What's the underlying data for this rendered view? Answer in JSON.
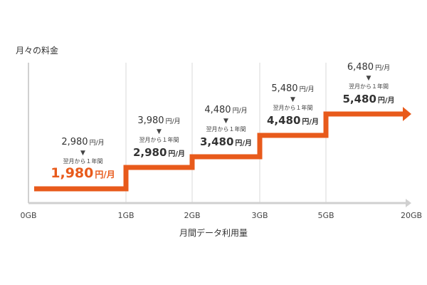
{
  "chart_data": {
    "type": "line",
    "ylabel": "月々の料金",
    "xlabel": "月間データ利用量",
    "x_categories": [
      "0GB",
      "1GB",
      "2GB",
      "3GB",
      "5GB",
      "20GB"
    ],
    "series": [
      {
        "values": [
          1980,
          2980,
          3480,
          4480,
          5480
        ]
      }
    ],
    "annotations": [
      {
        "regular": "2,980",
        "arrow": "▼",
        "note": "翌月から１年間",
        "discount": "1,980",
        "unit": "円/月"
      },
      {
        "regular": "3,980",
        "arrow": "▼",
        "note": "翌月から１年間",
        "discount": "2,980",
        "unit": "円/月"
      },
      {
        "regular": "4,480",
        "arrow": "▼",
        "note": "翌月から１年間",
        "discount": "3,480",
        "unit": "円/月"
      },
      {
        "regular": "5,480",
        "arrow": "▼",
        "note": "翌月から１年間",
        "discount": "4,480",
        "unit": "円/月"
      },
      {
        "regular": "6,480",
        "arrow": "▼",
        "note": "翌月から１年間",
        "discount": "5,480",
        "unit": "円/月"
      }
    ],
    "colors": {
      "line": "#e85a1b",
      "highlight_price": "#e85a1b",
      "price": "#333333",
      "grid": "#d8d8d8",
      "axis": "#d0d0d0"
    },
    "grid": true
  }
}
